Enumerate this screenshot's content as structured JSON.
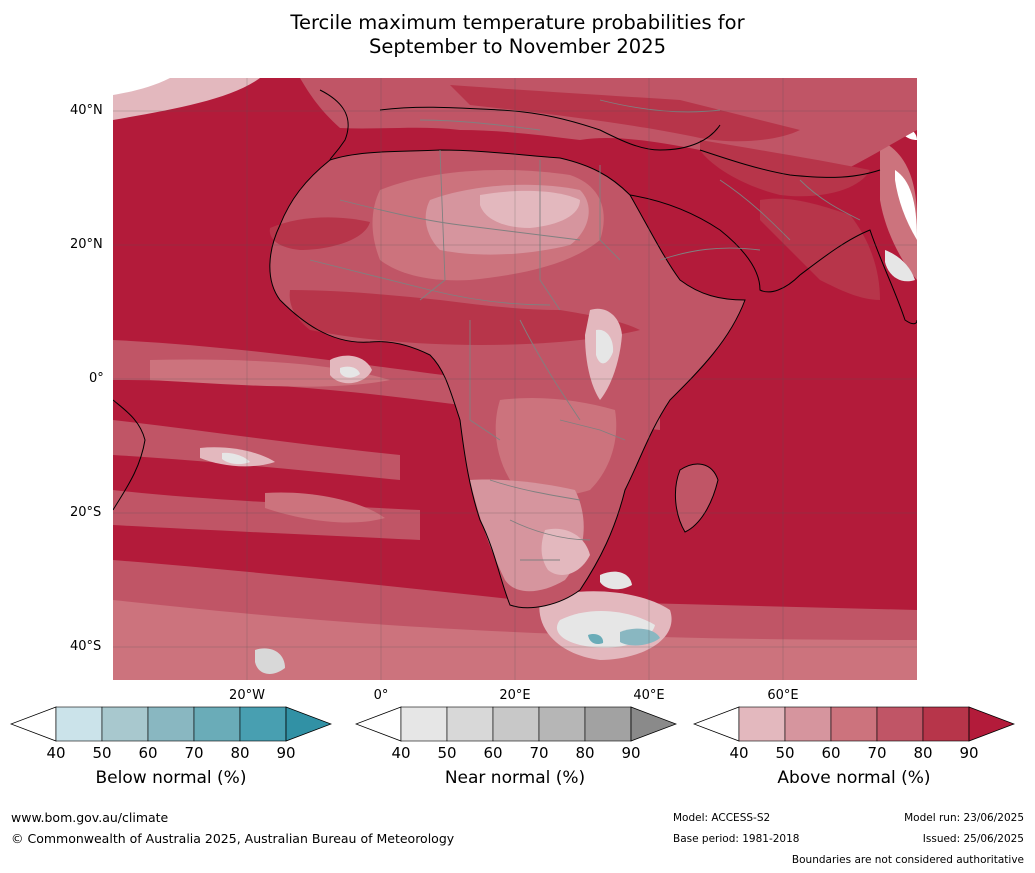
{
  "title_line1": "Tercile maximum temperature probabilities for",
  "title_line2": "September to November 2025",
  "lat_labels": [
    {
      "text": "40°N",
      "lat": 40
    },
    {
      "text": "20°N",
      "lat": 20
    },
    {
      "text": "0°",
      "lat": 0
    },
    {
      "text": "20°S",
      "lat": -20
    },
    {
      "text": "40°S",
      "lat": -40
    }
  ],
  "lon_labels": [
    {
      "text": "20°W",
      "lon": -20
    },
    {
      "text": "0°",
      "lon": 0
    },
    {
      "text": "20°E",
      "lon": 20
    },
    {
      "text": "40°E",
      "lon": 40
    },
    {
      "text": "60°E",
      "lon": 60
    }
  ],
  "map_extent": {
    "lon_min": -40,
    "lon_max": 80,
    "lat_min": -45,
    "lat_max": 45
  },
  "legends": [
    {
      "title": "Below normal (%)",
      "ticks": [
        "40",
        "50",
        "60",
        "70",
        "80",
        "90"
      ],
      "colors": [
        "#cbe3ea",
        "#a8c8ce",
        "#89b7c1",
        "#6aacb8",
        "#489fb1",
        "#3191a5"
      ]
    },
    {
      "title": "Near normal (%)",
      "ticks": [
        "40",
        "50",
        "60",
        "70",
        "80",
        "90"
      ],
      "colors": [
        "#e6e6e6",
        "#d8d8d8",
        "#c8c8c8",
        "#b6b6b6",
        "#a2a2a2",
        "#8a8a8a"
      ]
    },
    {
      "title": "Above normal (%)",
      "ticks": [
        "40",
        "50",
        "60",
        "70",
        "80",
        "90"
      ],
      "colors": [
        "#e3b8be",
        "#d6959e",
        "#cc737d",
        "#c05566",
        "#b7354a",
        "#b31b3a"
      ]
    }
  ],
  "footer": {
    "website": "www.bom.gov.au/climate",
    "copyright": "© Commonwealth of Australia 2025, Australian Bureau of Meteorology",
    "model": "Model: ACCESS-S2",
    "base_period": "Base period: 1981-2018",
    "model_run": "Model run: 23/06/2025",
    "issued": "Issued: 25/06/2025",
    "disclaimer": "Boundaries are not considered authoritative"
  }
}
